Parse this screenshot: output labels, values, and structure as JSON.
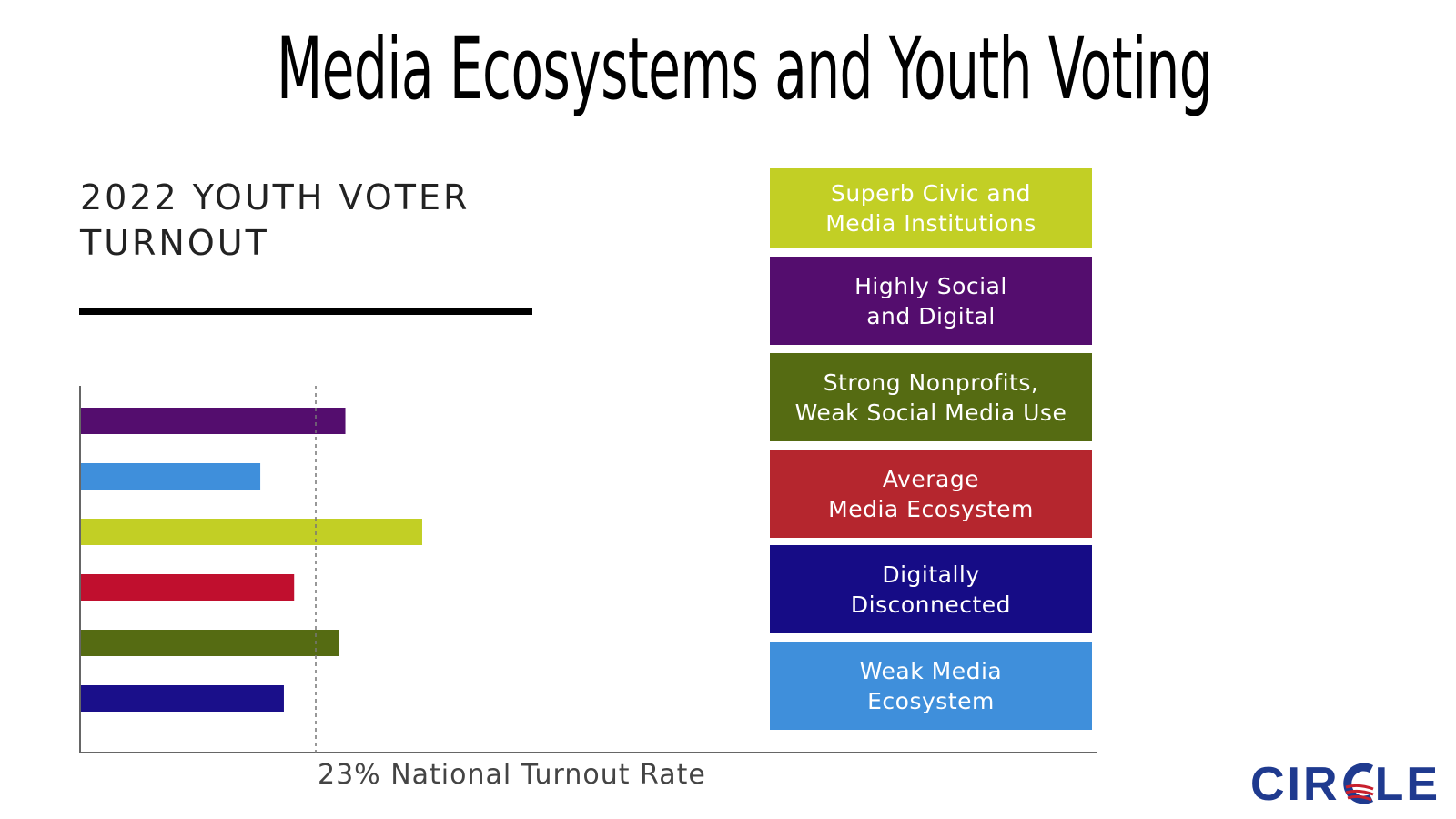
{
  "title": "Media Ecosystems and Youth Voting",
  "chart_data": {
    "type": "bar",
    "orientation": "horizontal",
    "title": "2022 YOUTH VOTER TURNOUT",
    "categories": [
      "Highly Social and Digital",
      "Weak Media Ecosystem",
      "Superb Civic and Media Institutions",
      "Average Media Ecosystem",
      "Strong Nonprofits, Weak Social Media Use",
      "Digitally Disconnected"
    ],
    "values": [
      25.8,
      17.5,
      33.3,
      20.8,
      25.2,
      19.8
    ],
    "colors": [
      "#540d6e",
      "#3f8fdb",
      "#c2cf25",
      "#c00f2e",
      "#556b12",
      "#1a0f8a"
    ],
    "xlim": [
      0,
      100
    ],
    "reference_line": {
      "value": 23,
      "label": "23% National Turnout Rate"
    },
    "grid": false
  },
  "legend": [
    {
      "label": "Superb Civic and Media Institutions",
      "lines": [
        "Superb Civic and",
        "Media Institutions"
      ],
      "color": "#c2cf25"
    },
    {
      "label": "Highly Social and Digital",
      "lines": [
        "Highly Social",
        "and Digital"
      ],
      "color": "#540d6e"
    },
    {
      "label": "Strong Nonprofits, Weak Social Media Use",
      "lines": [
        "Strong Nonprofits,",
        "Weak Social Media Use"
      ],
      "color": "#556b12"
    },
    {
      "label": "Average Media Ecosystem",
      "lines": [
        "Average",
        "Media Ecosystem"
      ],
      "color": "#b5262e"
    },
    {
      "label": "Digitally Disconnected",
      "lines": [
        "Digitally",
        "Disconnected"
      ],
      "color": "#160c86"
    },
    {
      "label": "Weak Media Ecosystem",
      "lines": [
        "Weak Media",
        "Ecosystem"
      ],
      "color": "#3f8fdb"
    }
  ],
  "logo": {
    "text_left": "CIR",
    "text_right": "LE",
    "brand_color": "#1f3a8f",
    "accent_color": "#c8202e"
  }
}
